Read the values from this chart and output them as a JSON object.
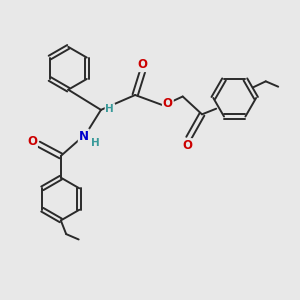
{
  "bg_color": "#e8e8e8",
  "bond_color": "#2a2a2a",
  "bond_width": 1.4,
  "atom_colors": {
    "O": "#cc0000",
    "N": "#0000cc",
    "H": "#3a9a9a"
  },
  "font_size_atom": 8.5,
  "font_size_H": 7.5
}
